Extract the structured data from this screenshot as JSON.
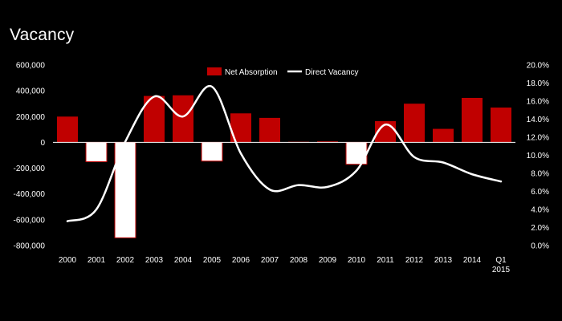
{
  "title": "Vacancy",
  "chart_data": {
    "type": "bar+line",
    "title": "Vacancy",
    "categories": [
      "2000",
      "2001",
      "2002",
      "2003",
      "2004",
      "2005",
      "2006",
      "2007",
      "2008",
      "2009",
      "2010",
      "2011",
      "2012",
      "2013",
      "2014",
      "Q1\n2015"
    ],
    "series": [
      {
        "name": "Net Absorption",
        "type": "bar",
        "axis": "left",
        "color": "#c00000",
        "negative_color": "#ffffff",
        "values": [
          200000,
          -150000,
          -740000,
          360000,
          365000,
          -145000,
          225000,
          190000,
          5000,
          8000,
          -170000,
          165000,
          300000,
          105000,
          345000,
          270000
        ]
      },
      {
        "name": "Direct Vacancy",
        "type": "line",
        "axis": "right",
        "color": "#ffffff",
        "values": [
          0.027,
          0.04,
          0.115,
          0.165,
          0.143,
          0.176,
          0.102,
          0.062,
          0.067,
          0.065,
          0.083,
          0.134,
          0.098,
          0.092,
          0.079,
          0.071
        ]
      }
    ],
    "y_left": {
      "min": -800000,
      "max": 600000,
      "step": 200000,
      "ticks": [
        "-800,000",
        "-600,000",
        "-400,000",
        "-200,000",
        "0",
        "200,000",
        "400,000",
        "600,000"
      ]
    },
    "y_right": {
      "min": 0,
      "max": 0.2,
      "step": 0.02,
      "ticks": [
        "0.0%",
        "2.0%",
        "4.0%",
        "6.0%",
        "8.0%",
        "10.0%",
        "12.0%",
        "14.0%",
        "16.0%",
        "18.0%",
        "20.0%"
      ]
    },
    "grid": false,
    "legend_position": "top-center"
  }
}
